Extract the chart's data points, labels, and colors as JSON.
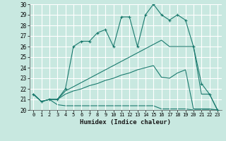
{
  "title": "",
  "xlabel": "Humidex (Indice chaleur)",
  "ylabel": "",
  "xlim": [
    -0.5,
    23.5
  ],
  "ylim": [
    20,
    30
  ],
  "yticks": [
    20,
    21,
    22,
    23,
    24,
    25,
    26,
    27,
    28,
    29,
    30
  ],
  "xticks": [
    0,
    1,
    2,
    3,
    4,
    5,
    6,
    7,
    8,
    9,
    10,
    11,
    12,
    13,
    14,
    15,
    16,
    17,
    18,
    19,
    20,
    21,
    22,
    23
  ],
  "bg_color": "#c8e8e0",
  "grid_color": "#ffffff",
  "line_color": "#1a7a6e",
  "line1_x": [
    0,
    1,
    2,
    3,
    4,
    5,
    6,
    7,
    8,
    9,
    10,
    11,
    12,
    13,
    14,
    15,
    16,
    17,
    18,
    19,
    20,
    21,
    22,
    23
  ],
  "line1_y": [
    21.5,
    20.8,
    21.0,
    21.0,
    22.0,
    26.0,
    26.5,
    26.5,
    27.3,
    27.6,
    26.0,
    28.8,
    28.8,
    26.0,
    29.0,
    30.0,
    29.0,
    28.5,
    29.0,
    28.5,
    26.0,
    22.5,
    21.5,
    20.0
  ],
  "line2_x": [
    0,
    1,
    2,
    3,
    4,
    5,
    6,
    7,
    8,
    9,
    10,
    11,
    12,
    13,
    14,
    15,
    16,
    17,
    18,
    19,
    20,
    21,
    22,
    23
  ],
  "line2_y": [
    21.5,
    20.8,
    21.0,
    21.0,
    21.8,
    22.2,
    22.6,
    23.0,
    23.4,
    23.8,
    24.2,
    24.6,
    25.0,
    25.4,
    25.8,
    26.2,
    26.6,
    26.0,
    26.0,
    26.0,
    26.0,
    21.5,
    21.5,
    20.0
  ],
  "line3_x": [
    0,
    1,
    2,
    3,
    4,
    5,
    6,
    7,
    8,
    9,
    10,
    11,
    12,
    13,
    14,
    15,
    16,
    17,
    18,
    19,
    20,
    21,
    22,
    23
  ],
  "line3_y": [
    21.5,
    20.8,
    21.0,
    21.0,
    21.5,
    21.8,
    22.0,
    22.3,
    22.5,
    22.8,
    23.0,
    23.3,
    23.5,
    23.8,
    24.0,
    24.2,
    23.1,
    23.0,
    23.5,
    23.8,
    20.1,
    20.1,
    20.1,
    20.0
  ],
  "line4_x": [
    0,
    1,
    2,
    3,
    4,
    5,
    6,
    7,
    8,
    9,
    10,
    11,
    12,
    13,
    14,
    15,
    16,
    17,
    18,
    19,
    20,
    21,
    22,
    23
  ],
  "line4_y": [
    21.5,
    20.8,
    21.0,
    20.5,
    20.4,
    20.4,
    20.4,
    20.4,
    20.4,
    20.4,
    20.4,
    20.4,
    20.4,
    20.4,
    20.4,
    20.4,
    20.1,
    20.1,
    20.1,
    20.1,
    20.0,
    20.0,
    20.0,
    20.0
  ]
}
